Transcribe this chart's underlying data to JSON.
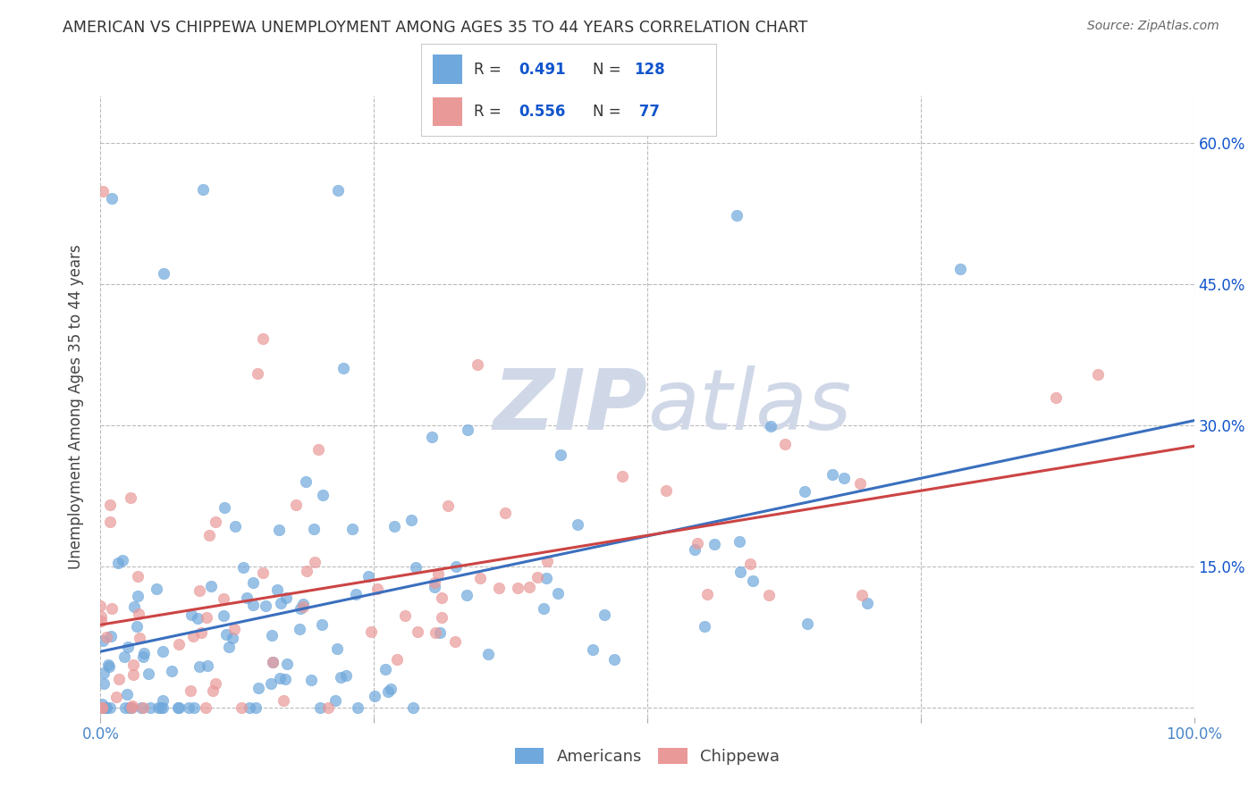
{
  "title": "AMERICAN VS CHIPPEWA UNEMPLOYMENT AMONG AGES 35 TO 44 YEARS CORRELATION CHART",
  "source": "Source: ZipAtlas.com",
  "ylabel": "Unemployment Among Ages 35 to 44 years",
  "xlim": [
    0,
    1.0
  ],
  "ylim": [
    -0.01,
    0.65
  ],
  "xticks": [
    0.0,
    0.25,
    0.5,
    0.75,
    1.0
  ],
  "xticklabels": [
    "0.0%",
    "",
    "",
    "",
    "100.0%"
  ],
  "yticks": [
    0.0,
    0.15,
    0.3,
    0.45,
    0.6
  ],
  "yticklabels_right": [
    "",
    "15.0%",
    "30.0%",
    "45.0%",
    "60.0%"
  ],
  "R_american": 0.491,
  "N_american": 128,
  "R_chippewa": 0.556,
  "N_chippewa": 77,
  "color_american": "#6fa8dc",
  "color_chippewa": "#ea9999",
  "color_american_line": "#3a6fbe",
  "color_chippewa_line": "#cc4444",
  "color_r_value": "#1155cc",
  "background_color": "#ffffff",
  "grid_color": "#bbbbbb",
  "title_color": "#333333",
  "watermark_color": "#d0d8e8",
  "legend_label_american": "Americans",
  "legend_label_chippewa": "Chippewa",
  "seed": 12345
}
